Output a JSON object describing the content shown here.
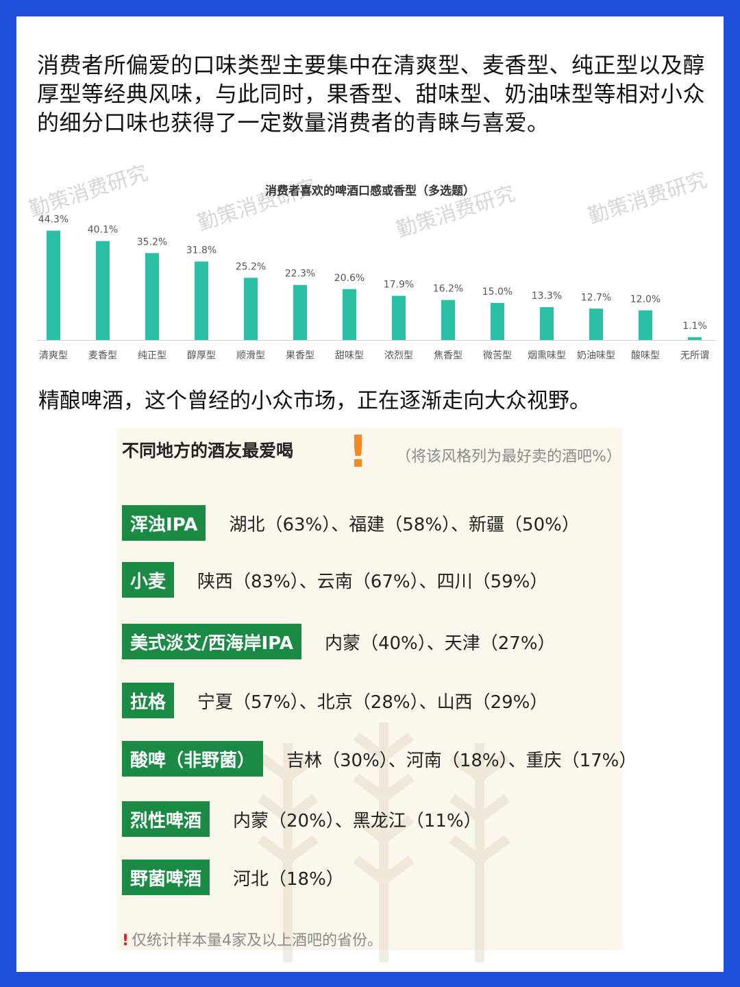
{
  "intro_text": "消费者所偏爱的口味类型主要集中在清爽型、麦香型、纯正型以及醇厚型等经典风味，与此同时，果香型、甜味型、奶油味型等相对小众的细分口味也获得了一定数量消费者的青睐与喜爱。",
  "watermark": "勤策消费研究",
  "chart_data": {
    "type": "bar",
    "title": "消费者喜欢的啤酒口感或香型（多选题）",
    "xlabel": "",
    "ylabel": "",
    "categories": [
      "清爽型",
      "麦香型",
      "纯正型",
      "醇厚型",
      "顺滑型",
      "果香型",
      "甜味型",
      "浓烈型",
      "焦香型",
      "微苦型",
      "烟熏味型",
      "奶油味型",
      "酸味型",
      "无所谓"
    ],
    "values": [
      44.3,
      40.1,
      35.2,
      31.8,
      25.2,
      22.3,
      20.6,
      17.9,
      16.2,
      15.0,
      13.3,
      12.7,
      12.0,
      1.1
    ],
    "value_labels": [
      "44.3%",
      "40.1%",
      "35.2%",
      "31.8%",
      "25.2%",
      "22.3%",
      "20.6%",
      "17.9%",
      "16.2%",
      "15.0%",
      "13.3%",
      "12.7%",
      "12.0%",
      "1.1%"
    ],
    "ylim": [
      0,
      50
    ],
    "grid": false,
    "legend": "none",
    "bar_color": "#2bbfa4"
  },
  "subheading": "精酿啤酒，这个曾经的小众市场，正在逐渐走向大众视野。",
  "panel": {
    "title": "不同地方的酒友最爱喝",
    "exclaim": "!",
    "note": "（将该风格列为最好卖的酒吧%）",
    "rows": [
      {
        "style": "浑浊IPA",
        "regions": "湖北（63%）、福建（58%）、新疆（50%）"
      },
      {
        "style": "小麦",
        "regions": "陕西（83%）、云南（67%）、四川（59%）"
      },
      {
        "style": "美式淡艾/西海岸IPA",
        "regions": "内蒙（40%）、天津（27%）"
      },
      {
        "style": "拉格",
        "regions": "宁夏（57%）、北京（28%）、山西（29%）"
      },
      {
        "style": "酸啤（非野菌）",
        "regions": "吉林（30%）、河南（18%）、重庆（17%）"
      },
      {
        "style": "烈性啤酒",
        "regions": "内蒙（20%）、黑龙江（11%）"
      },
      {
        "style": "野菌啤酒",
        "regions": "河北（18%）"
      }
    ],
    "footnote_mark": "!",
    "footnote": "仅统计样本量4家及以上酒吧的省份。"
  },
  "colors": {
    "frame": "#1f4fd8",
    "bar": "#2bbfa4",
    "tag": "#1a8a45",
    "accent": "#f08a24",
    "panel_bg": "#fbf7ec"
  }
}
